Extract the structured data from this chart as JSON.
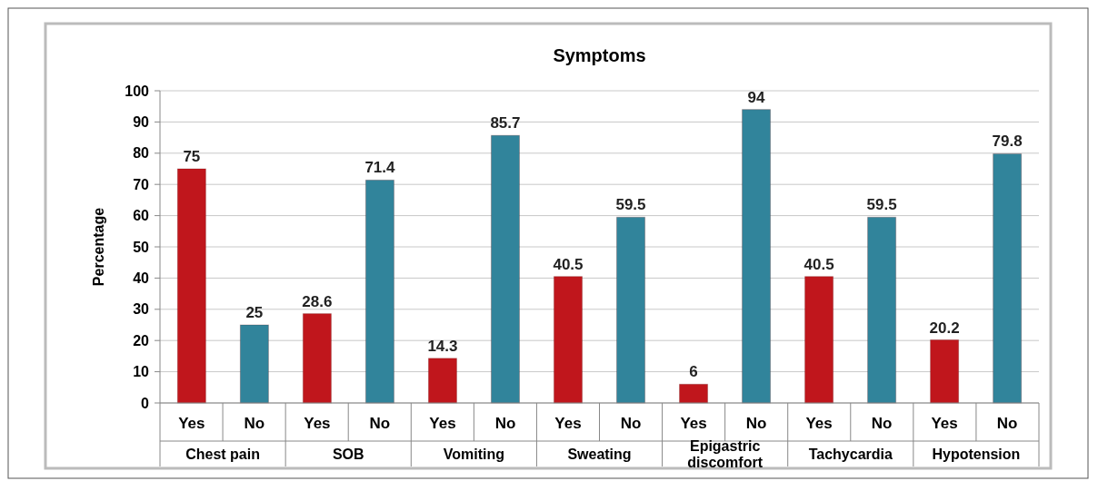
{
  "chart_data": {
    "type": "bar",
    "title": "Symptoms",
    "ylabel": "Percentage",
    "categories": [
      "Yes",
      "No",
      "Yes",
      "No",
      "Yes",
      "No",
      "Yes",
      "No",
      "Yes",
      "No",
      "Yes",
      "No",
      "Yes",
      "No"
    ],
    "values": [
      75,
      25,
      28.6,
      71.4,
      14.3,
      85.7,
      40.5,
      59.5,
      6,
      94,
      40.5,
      59.5,
      20.2,
      79.8
    ],
    "colors": [
      "#c0161c",
      "#31849b",
      "#c0161c",
      "#31849b",
      "#c0161c",
      "#31849b",
      "#c0161c",
      "#31849b",
      "#c0161c",
      "#31849b",
      "#c0161c",
      "#31849b",
      "#c0161c",
      "#31849b"
    ],
    "annotations": [
      "Chest pain",
      "SOB",
      "Vomiting",
      "Sweating",
      "Epigastric discomfort",
      "Tachycardia",
      "Hypotension"
    ],
    "ylim": [
      0,
      100
    ],
    "yticks": [
      0,
      10,
      20,
      30,
      40,
      50,
      60,
      70,
      80,
      90,
      100
    ],
    "grid": "y",
    "data_labels": true
  }
}
